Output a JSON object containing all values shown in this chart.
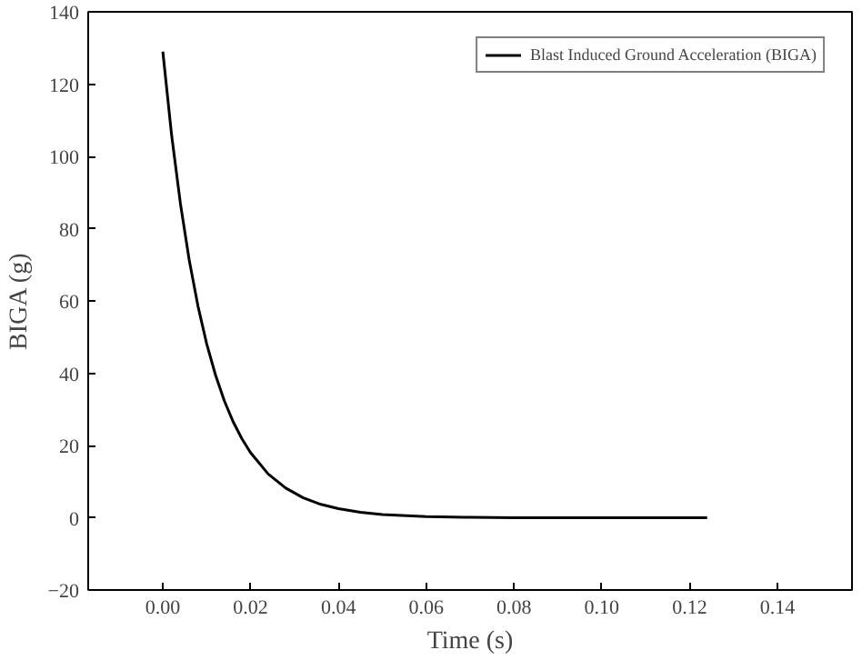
{
  "chart_data": {
    "type": "line",
    "xlabel": "Time (s)",
    "ylabel": "BIGA (g)",
    "xlim": [
      -0.017,
      0.157
    ],
    "ylim": [
      -20,
      140
    ],
    "xticks": [
      {
        "value": 0,
        "label": "0.00"
      },
      {
        "value": 0.02,
        "label": "0.02"
      },
      {
        "value": 0.04,
        "label": "0.04"
      },
      {
        "value": 0.06,
        "label": "0.06"
      },
      {
        "value": 0.08,
        "label": "0.08"
      },
      {
        "value": 0.1,
        "label": "0.10"
      },
      {
        "value": 0.12,
        "label": "0.12"
      },
      {
        "value": 0.14,
        "label": "0.14"
      }
    ],
    "yticks": [
      -20,
      0,
      20,
      40,
      60,
      80,
      100,
      120,
      140
    ],
    "x": [
      0,
      0.002,
      0.004,
      0.006,
      0.008,
      0.01,
      0.012,
      0.014,
      0.016,
      0.018,
      0.02,
      0.024,
      0.028,
      0.032,
      0.036,
      0.04,
      0.045,
      0.05,
      0.06,
      0.07,
      0.08,
      0.1,
      0.124
    ],
    "series": [
      {
        "name": "Blast Induced Ground Acceleration (BIGA)",
        "color": "#000000",
        "values": [
          129,
          105.9,
          87.0,
          71.4,
          58.6,
          48.1,
          39.5,
          32.4,
          26.6,
          21.9,
          18.0,
          12.1,
          8.2,
          5.5,
          3.7,
          2.5,
          1.5,
          0.9,
          0.3,
          0.1,
          0,
          0,
          0
        ]
      }
    ],
    "legend": "top right",
    "grid": false,
    "line_style": "solid"
  }
}
